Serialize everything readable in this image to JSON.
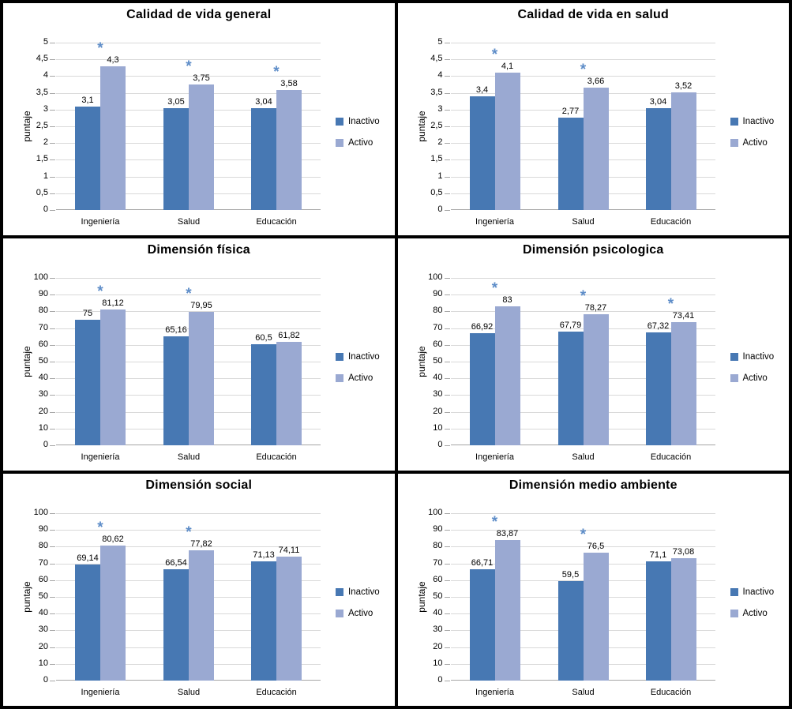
{
  "colors": {
    "inactivo_series": "#4778B3",
    "activo_series": "#9AA9D2",
    "asterisk": "#5E8DC8",
    "gridline": "#D9D9D9",
    "axis_line": "#A6A6A6",
    "text": "#000000"
  },
  "symbols": {
    "significance": "*"
  },
  "chart_data": [
    {
      "type": "bar",
      "title": "Calidad de vida general",
      "ylabel": "puntaje",
      "categories": [
        "Ingeniería",
        "Salud",
        "Educación"
      ],
      "ylim": [
        0,
        5
      ],
      "yticks": [
        "5",
        "4,5",
        "4",
        "3,5",
        "3",
        "2,5",
        "2",
        "1,5",
        "1",
        "0,5",
        "0"
      ],
      "grid": true,
      "legend_position": "right",
      "series": [
        {
          "name": "Inactivo",
          "values": [
            3.1,
            3.05,
            3.04
          ],
          "labels": [
            "3,1",
            "3,05",
            "3,04"
          ]
        },
        {
          "name": "Activo",
          "values": [
            4.3,
            3.75,
            3.58
          ],
          "labels": [
            "4,3",
            "3,75",
            "3,58"
          ]
        }
      ],
      "significant": [
        true,
        true,
        true
      ]
    },
    {
      "type": "bar",
      "title": "Calidad de vida en salud",
      "ylabel": "puntaje",
      "categories": [
        "Ingeniería",
        "Salud",
        "Educación"
      ],
      "ylim": [
        0,
        5
      ],
      "yticks": [
        "5",
        "4,5",
        "4",
        "3,5",
        "3",
        "2,5",
        "2",
        "1,5",
        "1",
        "0,5",
        "0"
      ],
      "grid": true,
      "legend_position": "right",
      "series": [
        {
          "name": "Inactivo",
          "values": [
            3.4,
            2.77,
            3.04
          ],
          "labels": [
            "3,4",
            "2,77",
            "3,04"
          ]
        },
        {
          "name": "Activo",
          "values": [
            4.1,
            3.66,
            3.52
          ],
          "labels": [
            "4,1",
            "3,66",
            "3,52"
          ]
        }
      ],
      "significant": [
        true,
        true,
        false
      ]
    },
    {
      "type": "bar",
      "title": "Dimensión física",
      "ylabel": "puntaje",
      "categories": [
        "Ingeniería",
        "Salud",
        "Educación"
      ],
      "ylim": [
        0,
        100
      ],
      "yticks": [
        "100",
        "90",
        "80",
        "70",
        "60",
        "50",
        "40",
        "30",
        "20",
        "10",
        "0"
      ],
      "grid": true,
      "legend_position": "right",
      "series": [
        {
          "name": "Inactivo",
          "values": [
            75,
            65.16,
            60.5
          ],
          "labels": [
            "75",
            "65,16",
            "60,5"
          ]
        },
        {
          "name": "Activo",
          "values": [
            81.12,
            79.95,
            61.82
          ],
          "labels": [
            "81,12",
            "79,95",
            "61,82"
          ]
        }
      ],
      "significant": [
        true,
        true,
        false
      ]
    },
    {
      "type": "bar",
      "title": "Dimensión psicologica",
      "ylabel": "puntaje",
      "categories": [
        "Ingeniería",
        "Salud",
        "Educación"
      ],
      "ylim": [
        0,
        100
      ],
      "yticks": [
        "100",
        "90",
        "80",
        "70",
        "60",
        "50",
        "40",
        "30",
        "20",
        "10",
        "0"
      ],
      "grid": true,
      "legend_position": "right",
      "series": [
        {
          "name": "Inactivo",
          "values": [
            66.92,
            67.79,
            67.32
          ],
          "labels": [
            "66,92",
            "67,79",
            "67,32"
          ]
        },
        {
          "name": "Activo",
          "values": [
            83,
            78.27,
            73.41
          ],
          "labels": [
            "83",
            "78,27",
            "73,41"
          ]
        }
      ],
      "significant": [
        true,
        true,
        true
      ]
    },
    {
      "type": "bar",
      "title": "Dimensión social",
      "ylabel": "puntaje",
      "categories": [
        "Ingeniería",
        "Salud",
        "Educación"
      ],
      "ylim": [
        0,
        100
      ],
      "yticks": [
        "100",
        "90",
        "80",
        "70",
        "60",
        "50",
        "40",
        "30",
        "20",
        "10",
        "0"
      ],
      "grid": true,
      "legend_position": "right",
      "series": [
        {
          "name": "Inactivo",
          "values": [
            69.14,
            66.54,
            71.13
          ],
          "labels": [
            "69,14",
            "66,54",
            "71,13"
          ]
        },
        {
          "name": "Activo",
          "values": [
            80.62,
            77.82,
            74.11
          ],
          "labels": [
            "80,62",
            "77,82",
            "74,11"
          ]
        }
      ],
      "significant": [
        true,
        true,
        false
      ]
    },
    {
      "type": "bar",
      "title": "Dimensión medio ambiente",
      "ylabel": "puntaje",
      "categories": [
        "Ingeniería",
        "Salud",
        "Educación"
      ],
      "ylim": [
        0,
        100
      ],
      "yticks": [
        "100",
        "90",
        "80",
        "70",
        "60",
        "50",
        "40",
        "30",
        "20",
        "10",
        "0"
      ],
      "grid": true,
      "legend_position": "right",
      "series": [
        {
          "name": "Inactivo",
          "values": [
            66.71,
            59.5,
            71.1
          ],
          "labels": [
            "66,71",
            "59,5",
            "71,1"
          ]
        },
        {
          "name": "Activo",
          "values": [
            83.87,
            76.5,
            73.08
          ],
          "labels": [
            "83,87",
            "76,5",
            "73,08"
          ]
        }
      ],
      "significant": [
        true,
        true,
        false
      ]
    }
  ]
}
